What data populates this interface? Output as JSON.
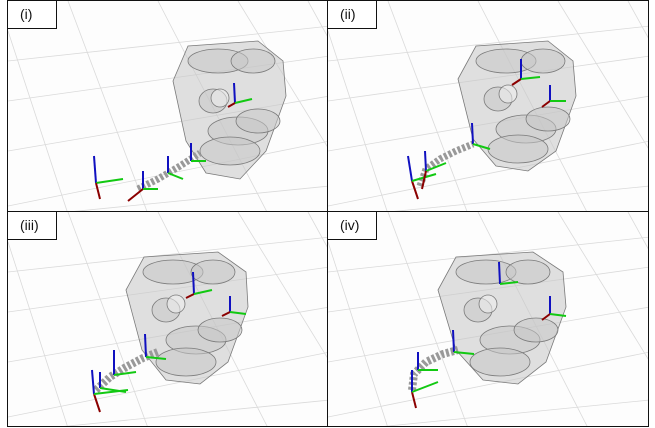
{
  "panels": [
    {
      "label": "(i)"
    },
    {
      "label": "(ii)"
    },
    {
      "label": "(iii)"
    },
    {
      "label": "(iv)"
    }
  ],
  "colors": {
    "axis_x": "#8b0000",
    "axis_y": "#12c912",
    "axis_z": "#1010c0",
    "engine": "#9a9a9a",
    "grid": "#d8d8d8"
  }
}
